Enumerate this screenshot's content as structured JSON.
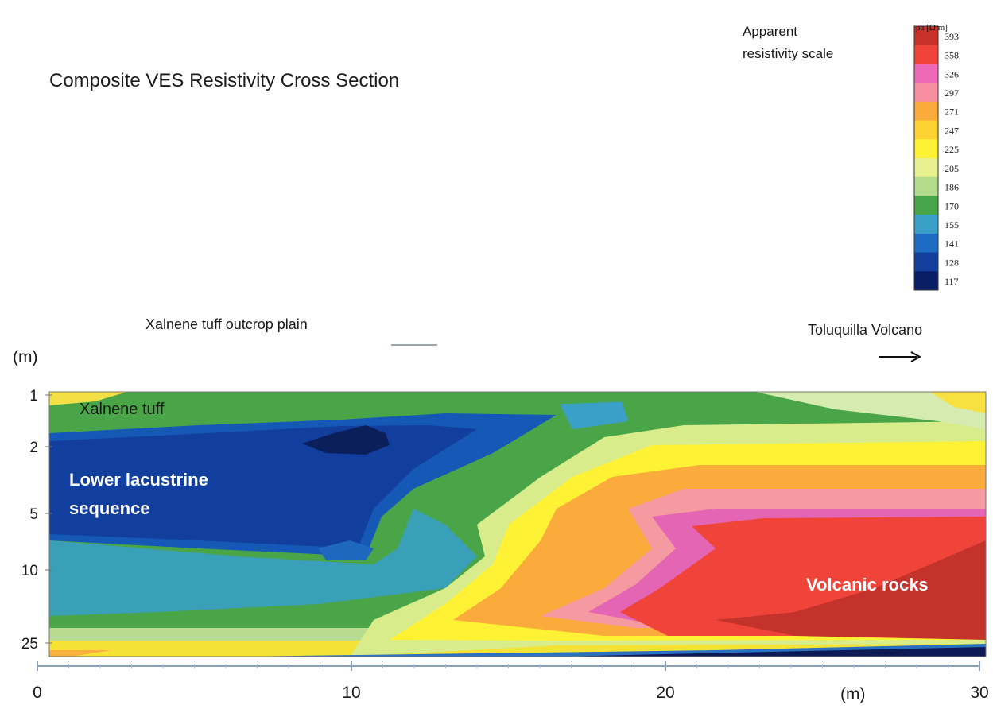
{
  "chart_data": {
    "type": "heatmap",
    "title": "Composite VES Resistivity Cross Section",
    "xlabel": "(m)",
    "ylabel": "(m)",
    "x_ticks": [
      0,
      10,
      20,
      30
    ],
    "y_ticks": [
      "1",
      "2",
      "5",
      "10",
      "25"
    ],
    "xlim": [
      0,
      30
    ],
    "colorbar": {
      "title": "Apparent resistivity scale",
      "unit": "ρa [Ω m]",
      "values": [
        393,
        358,
        326,
        297,
        271,
        247,
        225,
        205,
        186,
        170,
        155,
        141,
        128,
        117
      ],
      "colors": [
        "#c8302a",
        "#f0443a",
        "#ee6ab8",
        "#f78fa0",
        "#fbaa3c",
        "#fbd232",
        "#fff235",
        "#e9f090",
        "#b2dc8c",
        "#48a64a",
        "#3aa0c8",
        "#1e6bc4",
        "#123e9c",
        "#0a1e66"
      ]
    },
    "annotations": [
      {
        "text": "Xalnene tuff",
        "label_color": "#1a1a1a"
      },
      {
        "text": "Lower lacustrine sequence",
        "label_color": "#ffffff"
      },
      {
        "text": "Volcanic rocks",
        "label_color": "#ffffff"
      },
      {
        "text": "Xalnene tuff outcrop plain"
      },
      {
        "text": "Toluquilla  Volcano"
      }
    ]
  },
  "labels": {
    "scale_title": "Apparent\nresistivity scale",
    "scale_unit": "ρa [Ω m]",
    "xalnene": "Xalnene tuff",
    "lower_line1": "Lower lacustrine",
    "lower_line2": "sequence",
    "volcanic": "Volcanic rocks",
    "outcrop": "Xalnene tuff outcrop plain",
    "volcano": "Toluquilla  Volcano",
    "unit_y": "(m)",
    "unit_x": "(m)"
  }
}
